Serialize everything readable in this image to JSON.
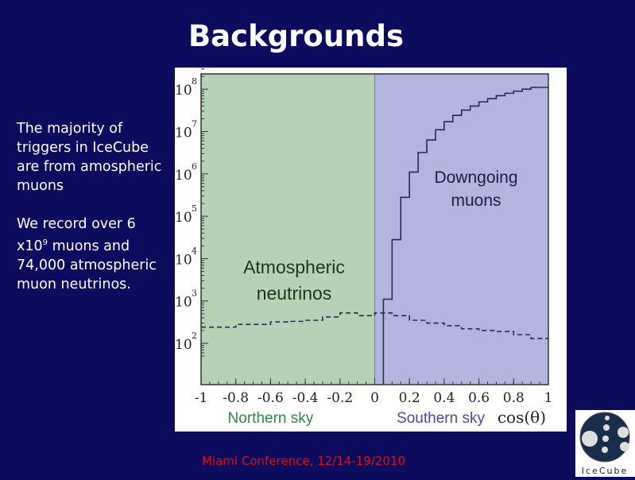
{
  "slide": {
    "title": "Backgrounds",
    "paragraphs": [
      "The majority of triggers in IceCube are from amospheric muons",
      "We record over 6 x10"
    ],
    "p2_sup": "9",
    "p2_rest": " muons and 74,000 atmospheric muon neutrinos.",
    "footer": "Miami Conference, 12/14-19/2010",
    "logo_text": "IceCube"
  },
  "colors": {
    "background": "#0c0b5e",
    "footer": "#e01010",
    "northern": "#b6d1b6",
    "southern": "#b3b5de"
  },
  "chart_data": {
    "type": "line",
    "xlabel": "cos(θ)",
    "xlim": [
      -1,
      1
    ],
    "ylim_log10": [
      0.7,
      8.5
    ],
    "yscale": "log",
    "x_ticks": [
      "-1",
      "-0.8",
      "-0.6",
      "-0.4",
      "-0.2",
      "0",
      "0.2",
      "0.4",
      "0.6",
      "0.8",
      "1"
    ],
    "y_ticks": [
      {
        "base": "10",
        "exp": "2"
      },
      {
        "base": "10",
        "exp": "3"
      },
      {
        "base": "10",
        "exp": "4"
      },
      {
        "base": "10",
        "exp": "5"
      },
      {
        "base": "10",
        "exp": "6"
      },
      {
        "base": "10",
        "exp": "7"
      },
      {
        "base": "10",
        "exp": "8"
      }
    ],
    "regions": [
      {
        "label": "Northern sky",
        "range": [
          -1,
          0
        ],
        "annotation": [
          "Atmospheric",
          "neutrinos"
        ]
      },
      {
        "label": "Southern sky",
        "range": [
          0,
          1
        ],
        "annotation": [
          "Downgoing",
          "muons"
        ]
      }
    ],
    "series": [
      {
        "style": "solid",
        "bin_edges": [
          0.05,
          0.1,
          0.15,
          0.2,
          0.25,
          0.3,
          0.35,
          0.4,
          0.45,
          0.5,
          0.55,
          0.6,
          0.65,
          0.7,
          0.75,
          0.8,
          0.85,
          0.9,
          0.95,
          1.0
        ],
        "values": [
          1100,
          28000,
          280000,
          1100000,
          3200000,
          6300000,
          11000000,
          17000000,
          24000000,
          32000000,
          40000000,
          50000000,
          60000000,
          70000000,
          80000000,
          90000000,
          100000000,
          110000000,
          110000000
        ]
      },
      {
        "style": "dashed",
        "bin_edges": [
          -1,
          -0.9,
          -0.8,
          -0.7,
          -0.6,
          -0.5,
          -0.4,
          -0.3,
          -0.2,
          -0.1,
          0,
          0.1,
          0.2,
          0.3,
          0.4,
          0.5,
          0.6,
          0.7,
          0.8,
          0.9,
          1.0
        ],
        "values": [
          240,
          240,
          280,
          280,
          320,
          330,
          350,
          420,
          520,
          450,
          520,
          450,
          350,
          300,
          260,
          220,
          200,
          190,
          160,
          130
        ]
      }
    ]
  }
}
